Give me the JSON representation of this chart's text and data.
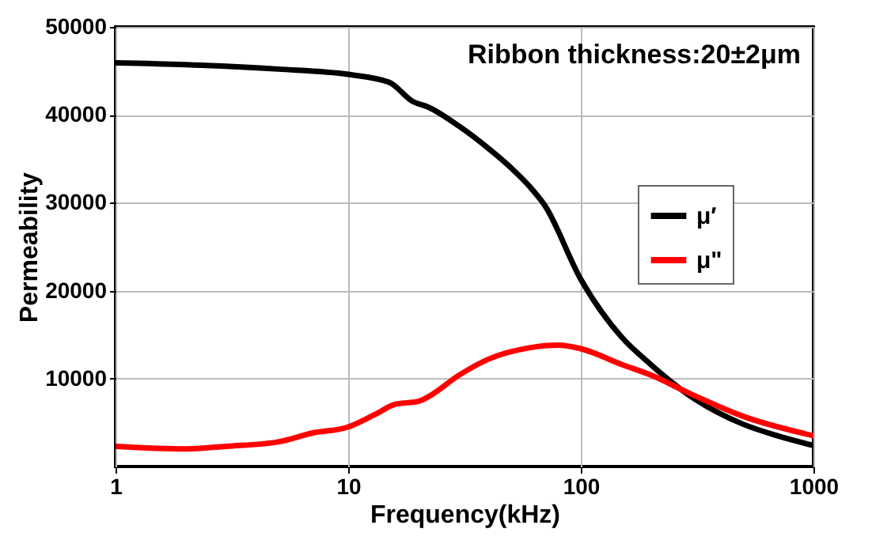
{
  "chart_data": {
    "type": "line",
    "xlabel": "Frequency(kHz)",
    "ylabel": "Permeability",
    "annotations": [
      "Ribbon thickness:20±2μm"
    ],
    "log": "x",
    "xlim": [
      1,
      1000
    ],
    "xticks": [
      1,
      10,
      100,
      1000
    ],
    "ylim": [
      0,
      50000
    ],
    "yticks": [
      10000,
      20000,
      30000,
      40000,
      50000
    ],
    "grid": true,
    "legend": "top right",
    "line_style": "solid",
    "marker": "none",
    "series": [
      {
        "name": "μ′",
        "color": "#000000",
        "x": [
          1,
          2,
          5,
          10,
          15,
          19,
          22,
          30,
          40,
          50,
          60,
          70,
          100,
          150,
          200,
          300,
          500,
          700,
          1000
        ],
        "values": [
          45900,
          45700,
          45200,
          44600,
          43700,
          41500,
          40900,
          38700,
          36200,
          34000,
          31900,
          29700,
          21300,
          14700,
          11600,
          7900,
          4800,
          3500,
          2400
        ]
      },
      {
        "name": "μ\"",
        "color": "#ff0000",
        "x": [
          1,
          2,
          3,
          5,
          7,
          10,
          13,
          16,
          20,
          22,
          30,
          40,
          60,
          80,
          100,
          150,
          200,
          300,
          500,
          1000
        ],
        "values": [
          2300,
          2000,
          2300,
          2800,
          3800,
          4500,
          5900,
          7100,
          7400,
          7900,
          10400,
          12200,
          13500,
          13800,
          13400,
          11600,
          10400,
          8200,
          5700,
          3500
        ]
      }
    ]
  }
}
